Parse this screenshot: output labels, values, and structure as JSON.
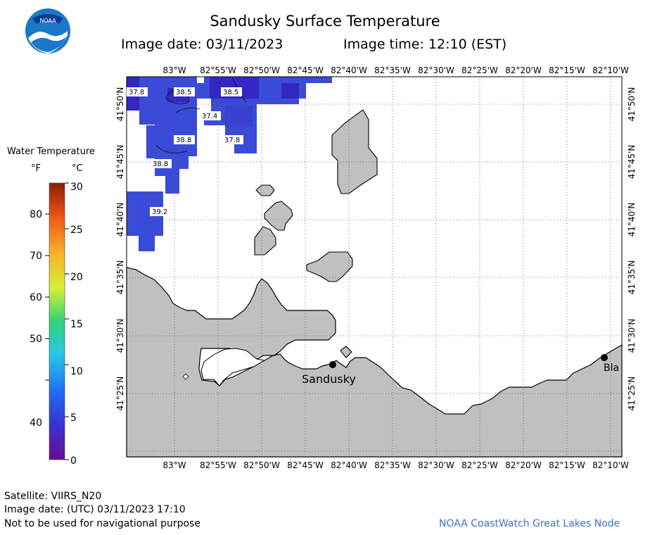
{
  "header": {
    "title": "Sandusky Surface Temperature",
    "image_date": "Image date: 03/11/2023",
    "image_time": "Image time: 12:10 (EST)"
  },
  "legend": {
    "title": "Water Temperature",
    "unit_f": "°F",
    "unit_c": "°C",
    "f_ticks": [
      "80",
      "70",
      "60",
      "50",
      "40"
    ],
    "c_ticks": [
      "30",
      "25",
      "20",
      "15",
      "10",
      "5",
      "0"
    ]
  },
  "map": {
    "lon_labels": [
      "83°W",
      "82°55'W",
      "82°50'W",
      "82°45'W",
      "82°40'W",
      "82°35'W",
      "82°30'W",
      "82°25'W",
      "82°20'W",
      "82°15'W",
      "82°10'W"
    ],
    "lat_labels": [
      "41°50'N",
      "41°45'N",
      "41°40'N",
      "41°35'N",
      "41°30'N",
      "41°25'N"
    ],
    "temp_labels": [
      "37.8",
      "38.5",
      "38.5",
      "37.4",
      "38.8",
      "37.8",
      "38.8",
      "39.2"
    ],
    "places": [
      "Sandusky",
      "Bla"
    ],
    "colors": {
      "water_cold": "#3a4bd8",
      "water_dark": "#3326c4",
      "land": "#c0c0c0"
    }
  },
  "footer": {
    "satellite": "Satellite: VIIRS_N20",
    "utc_date": "Image date: (UTC) 03/11/2023  17:10",
    "nav_warning": "Not to be used for navigational purpose",
    "credit": "NOAA CoastWatch Great Lakes Node"
  }
}
